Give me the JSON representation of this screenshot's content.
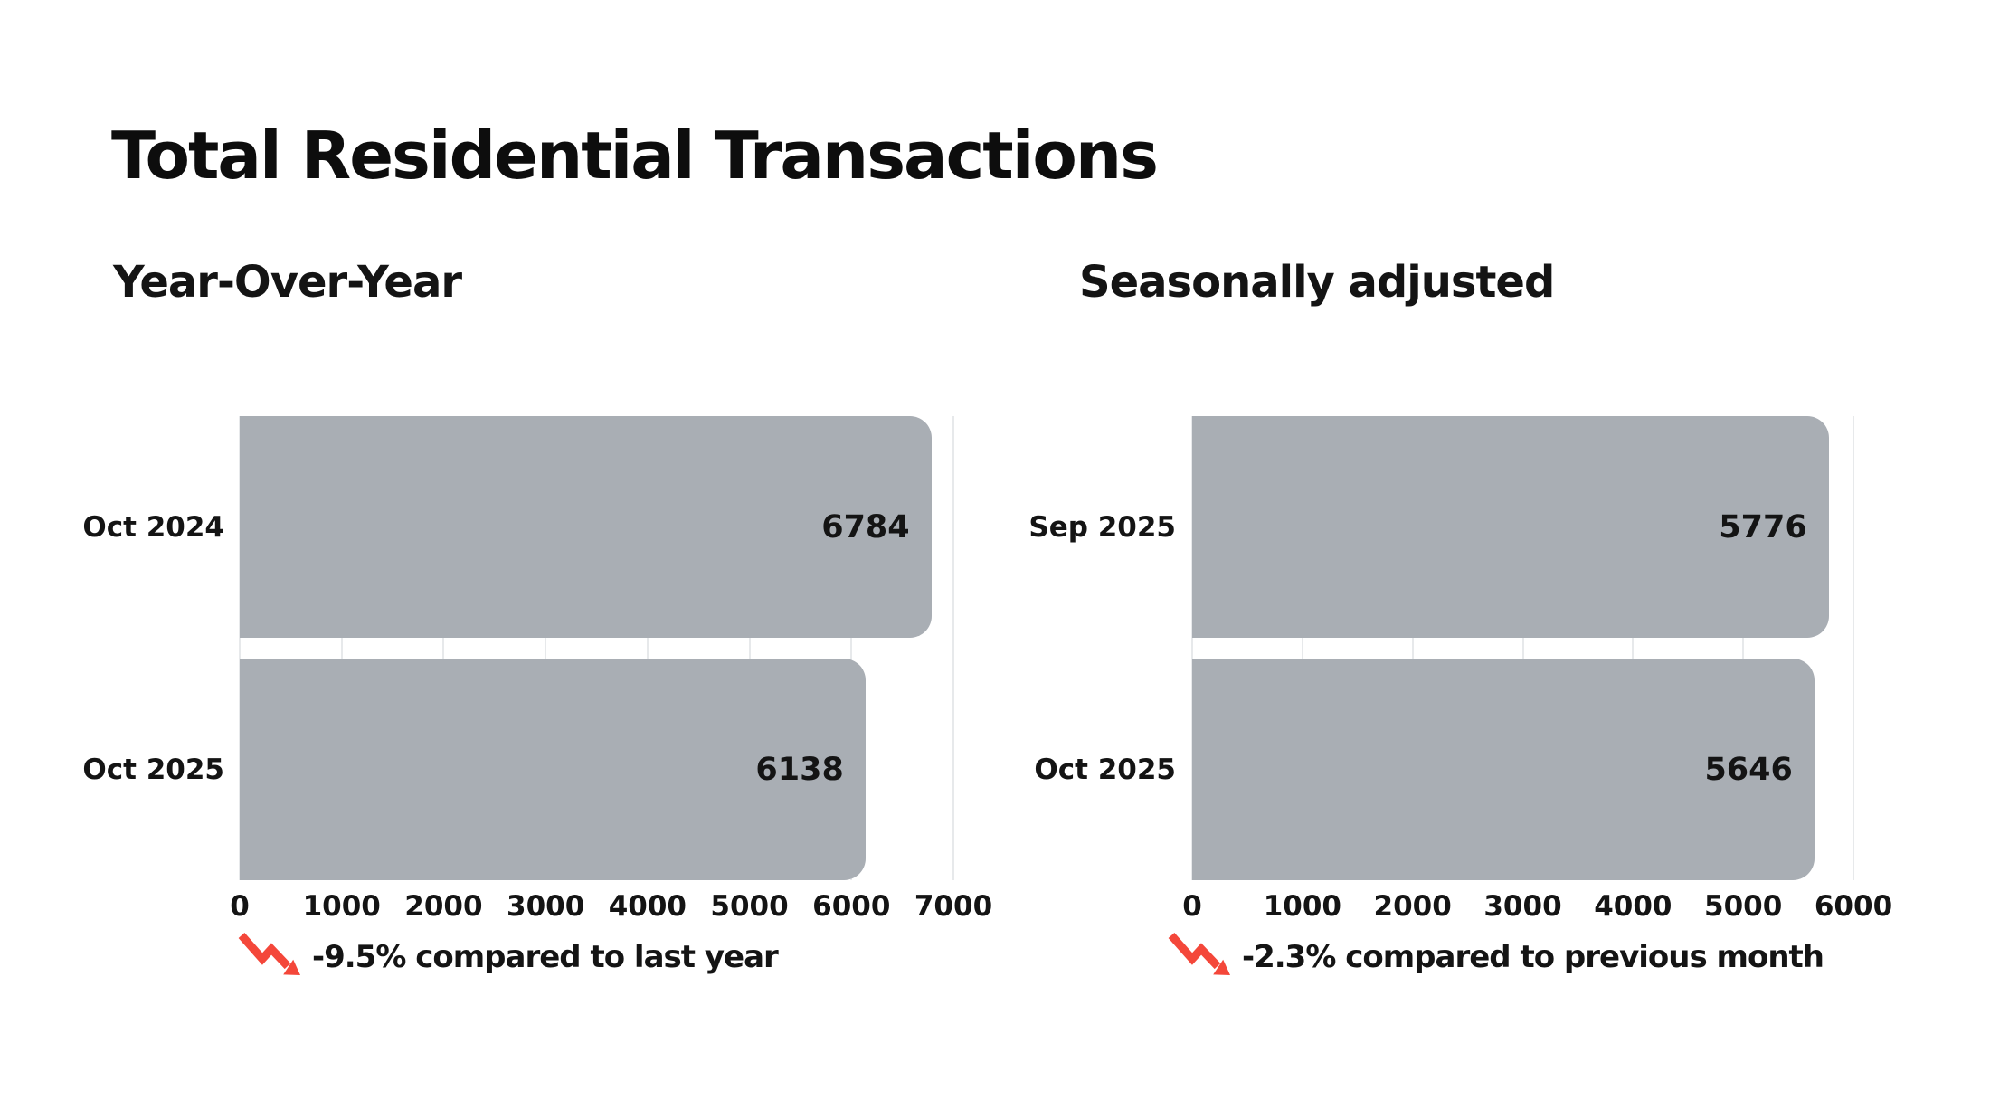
{
  "title": "Total Residential Transactions",
  "colors": {
    "bar": "#a9aeb4",
    "gridline": "#e7e9eb",
    "text": "#141414",
    "negative_trend": "#f4473a",
    "background": "#ffffff"
  },
  "icons": {
    "trend": "trend-down-icon"
  },
  "chart_data": [
    {
      "type": "bar",
      "orientation": "horizontal",
      "subtitle": "Year-Over-Year",
      "categories": [
        "Oct 2024",
        "Oct 2025"
      ],
      "values": [
        6784,
        6138
      ],
      "xlim": [
        0,
        7000
      ],
      "tick_step": 1000,
      "tick_labels": [
        "0",
        "1000",
        "2000",
        "3000",
        "4000",
        "5000",
        "6000",
        "7000"
      ],
      "grid": "vertical",
      "annotation": "-9.5% compared to last year"
    },
    {
      "type": "bar",
      "orientation": "horizontal",
      "subtitle": "Seasonally adjusted",
      "categories": [
        "Sep 2025",
        "Oct 2025"
      ],
      "values": [
        5776,
        5646
      ],
      "xlim": [
        0,
        6000
      ],
      "tick_step": 1000,
      "tick_labels": [
        "0",
        "1000",
        "2000",
        "3000",
        "4000",
        "5000",
        "6000"
      ],
      "grid": "vertical",
      "annotation": "-2.3% compared to previous month"
    }
  ]
}
